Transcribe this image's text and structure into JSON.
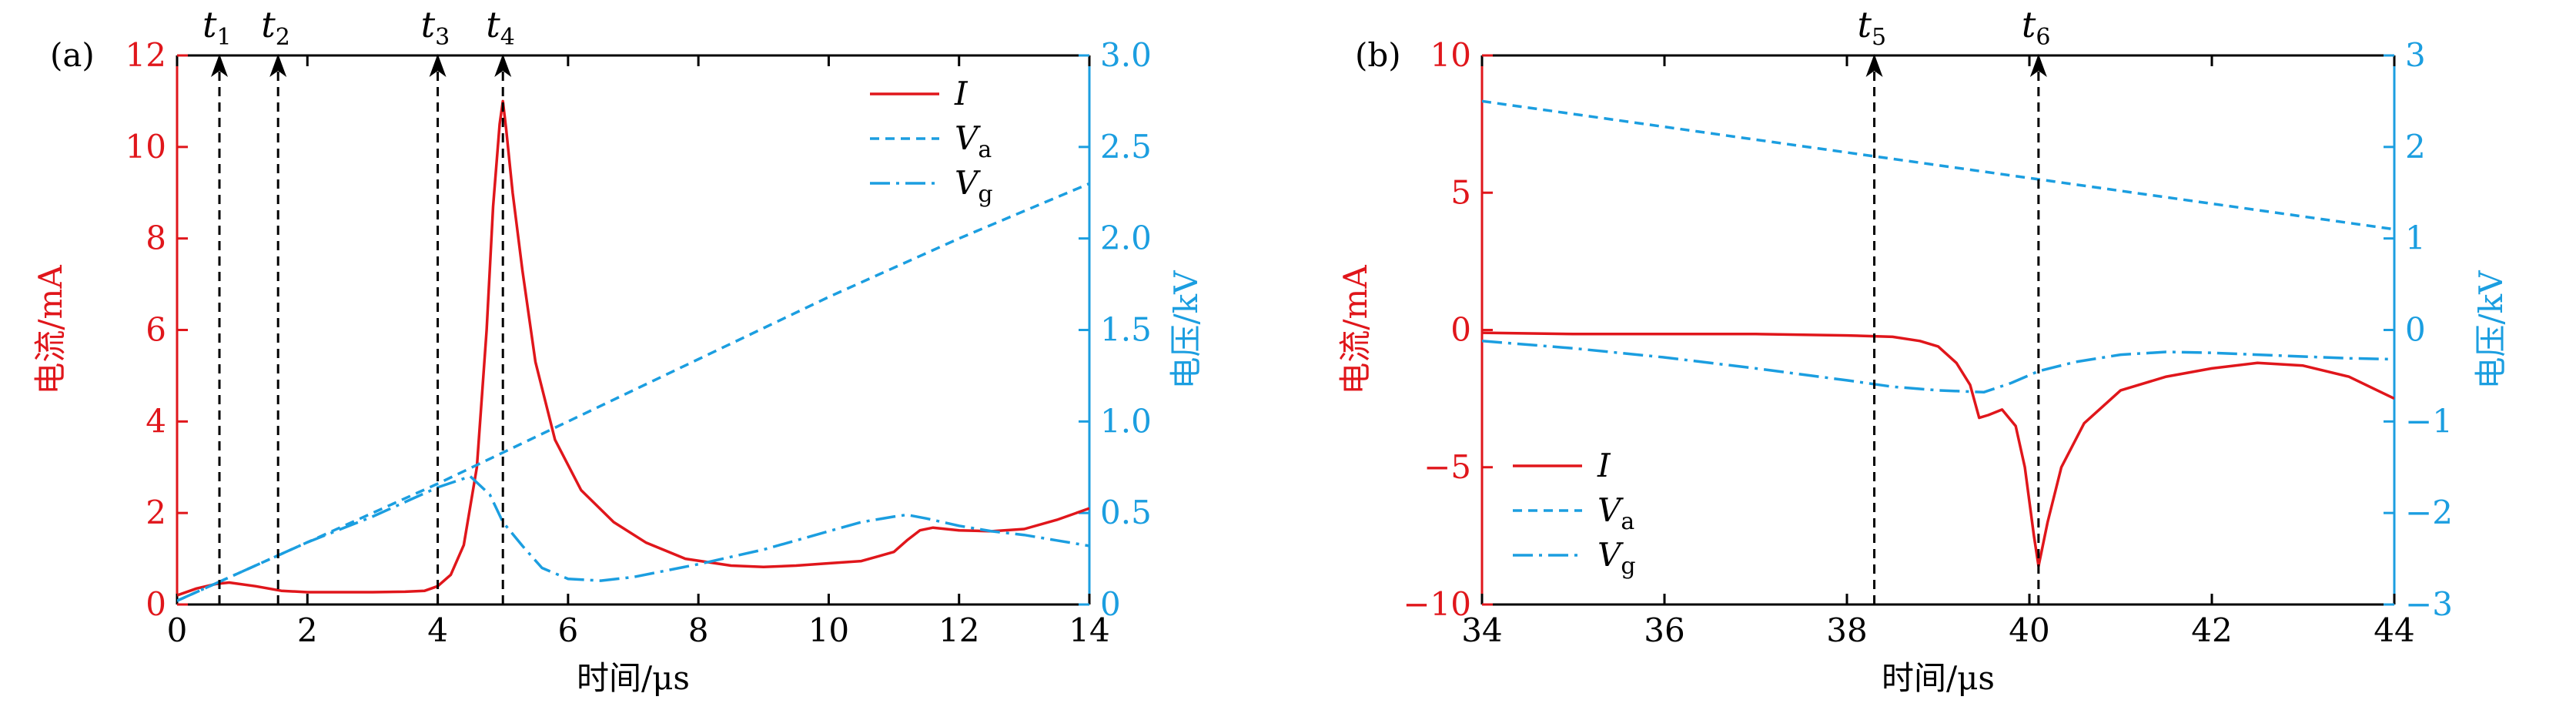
{
  "chart_data": [
    {
      "type": "line",
      "panel_label": "(a)",
      "xlabel": "时间/μs",
      "ylabel": "电流/mA",
      "y2label": "电压/kV",
      "xlim": [
        0,
        14
      ],
      "ylim": [
        0,
        12
      ],
      "y2lim": [
        0,
        3.0
      ],
      "xticks": [
        "0",
        "2",
        "4",
        "6",
        "8",
        "10",
        "12",
        "14"
      ],
      "yticks": [
        "0",
        "2",
        "4",
        "6",
        "8",
        "10",
        "12"
      ],
      "y2ticks": [
        "0",
        "0.5",
        "1.0",
        "1.5",
        "2.0",
        "2.5",
        "3.0"
      ],
      "legend_position": "top-right",
      "markers": [
        {
          "label": "t",
          "sub": "1",
          "x": 0.65
        },
        {
          "label": "t",
          "sub": "2",
          "x": 1.55
        },
        {
          "label": "t",
          "sub": "3",
          "x": 4.0
        },
        {
          "label": "t",
          "sub": "4",
          "x": 5.0
        }
      ],
      "series": [
        {
          "name": "I",
          "sub": "",
          "axis": "left",
          "color": "#e0161b",
          "style": "solid",
          "x": [
            0,
            0.3,
            0.6,
            0.8,
            1.2,
            1.6,
            2.0,
            3.0,
            3.5,
            3.8,
            4.0,
            4.2,
            4.4,
            4.6,
            4.75,
            4.85,
            4.95,
            5.0,
            5.05,
            5.15,
            5.3,
            5.5,
            5.8,
            6.2,
            6.7,
            7.2,
            7.8,
            8.5,
            9.0,
            9.5,
            10.0,
            10.5,
            11.0,
            11.2,
            11.4,
            11.6,
            12.0,
            12.5,
            13.0,
            13.5,
            14.0
          ],
          "y": [
            0.2,
            0.35,
            0.45,
            0.48,
            0.4,
            0.3,
            0.27,
            0.27,
            0.28,
            0.3,
            0.4,
            0.65,
            1.3,
            3.0,
            6.0,
            8.7,
            10.5,
            11.0,
            10.4,
            9.0,
            7.3,
            5.3,
            3.6,
            2.5,
            1.8,
            1.35,
            1.0,
            0.85,
            0.82,
            0.85,
            0.9,
            0.95,
            1.15,
            1.4,
            1.62,
            1.68,
            1.62,
            1.6,
            1.65,
            1.85,
            2.1
          ]
        },
        {
          "name": "V",
          "sub": "a",
          "axis": "right",
          "color": "#1b9ee0",
          "style": "dash",
          "x": [
            0,
            2,
            4,
            6,
            8,
            10,
            12,
            14
          ],
          "y": [
            0.02,
            0.34,
            0.66,
            1.0,
            1.34,
            1.68,
            2.0,
            2.3
          ]
        },
        {
          "name": "V",
          "sub": "g",
          "axis": "right",
          "color": "#1b9ee0",
          "style": "dashdot",
          "x": [
            0,
            1,
            2,
            3,
            4,
            4.5,
            4.8,
            5.0,
            5.3,
            5.6,
            6.0,
            6.5,
            7.0,
            8.0,
            9.0,
            10.0,
            10.5,
            11.0,
            11.2,
            11.5,
            12.0,
            12.5,
            13.0,
            13.5,
            14.0
          ],
          "y": [
            0.02,
            0.18,
            0.34,
            0.48,
            0.64,
            0.7,
            0.6,
            0.45,
            0.32,
            0.2,
            0.14,
            0.13,
            0.15,
            0.22,
            0.3,
            0.4,
            0.45,
            0.48,
            0.49,
            0.47,
            0.43,
            0.4,
            0.38,
            0.35,
            0.32
          ]
        }
      ]
    },
    {
      "type": "line",
      "panel_label": "(b)",
      "xlabel": "时间/μs",
      "ylabel": "电流/mA",
      "y2label": "电压/kV",
      "xlim": [
        34,
        44
      ],
      "ylim": [
        -10,
        10
      ],
      "y2lim": [
        -3,
        3
      ],
      "xticks": [
        "34",
        "36",
        "38",
        "40",
        "42",
        "44"
      ],
      "yticks": [
        "−10",
        "−5",
        "0",
        "5",
        "10"
      ],
      "y2ticks": [
        "−3",
        "−2",
        "−1",
        "0",
        "1",
        "2",
        "3"
      ],
      "legend_position": "bottom-left",
      "markers": [
        {
          "label": "t",
          "sub": "5",
          "x": 38.3
        },
        {
          "label": "t",
          "sub": "6",
          "x": 40.1
        }
      ],
      "series": [
        {
          "name": "I",
          "sub": "",
          "axis": "left",
          "color": "#e0161b",
          "style": "solid",
          "x": [
            34,
            35,
            36,
            37,
            38,
            38.5,
            38.8,
            39.0,
            39.2,
            39.35,
            39.45,
            39.55,
            39.7,
            39.85,
            39.95,
            40.05,
            40.1,
            40.2,
            40.35,
            40.6,
            41.0,
            41.5,
            42.0,
            42.5,
            43.0,
            43.5,
            44.0
          ],
          "y": [
            -0.1,
            -0.15,
            -0.15,
            -0.15,
            -0.2,
            -0.25,
            -0.4,
            -0.6,
            -1.2,
            -2.0,
            -3.2,
            -3.1,
            -2.9,
            -3.5,
            -5.0,
            -7.5,
            -8.6,
            -7.0,
            -5.0,
            -3.4,
            -2.2,
            -1.7,
            -1.4,
            -1.2,
            -1.3,
            -1.7,
            -2.5
          ]
        },
        {
          "name": "V",
          "sub": "a",
          "axis": "right",
          "color": "#1b9ee0",
          "style": "dash",
          "x": [
            34,
            36,
            38,
            40,
            42,
            44
          ],
          "y": [
            2.5,
            2.22,
            1.94,
            1.66,
            1.38,
            1.1
          ]
        },
        {
          "name": "V",
          "sub": "g",
          "axis": "right",
          "color": "#1b9ee0",
          "style": "dashdot",
          "x": [
            34,
            35,
            36,
            37,
            38,
            38.5,
            39.0,
            39.5,
            39.8,
            40.1,
            40.5,
            41.0,
            41.5,
            42.0,
            42.5,
            43.0,
            43.5,
            44.0
          ],
          "y": [
            -0.12,
            -0.2,
            -0.3,
            -0.42,
            -0.55,
            -0.62,
            -0.66,
            -0.68,
            -0.58,
            -0.45,
            -0.35,
            -0.27,
            -0.24,
            -0.25,
            -0.27,
            -0.29,
            -0.31,
            -0.32
          ]
        }
      ]
    }
  ]
}
